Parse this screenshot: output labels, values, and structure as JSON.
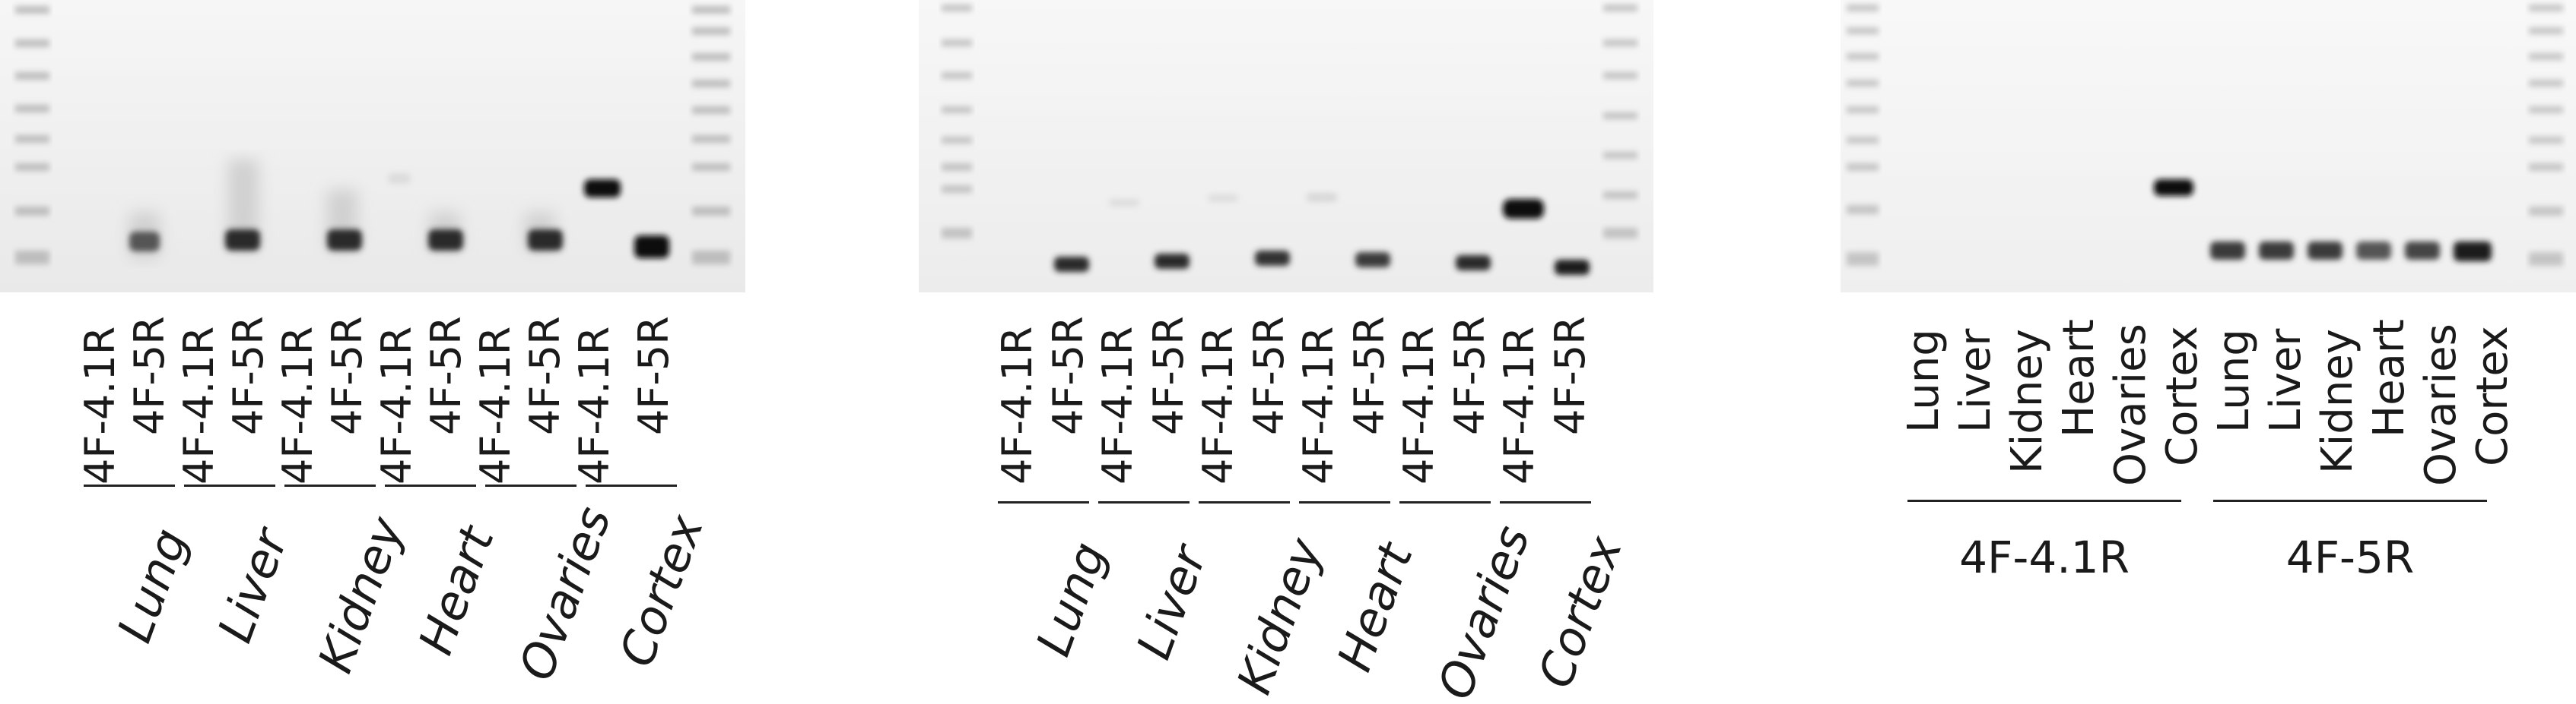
{
  "panel_a": {
    "lanes": [
      "4F-4.1R",
      "4F-5R",
      "4F-4.1R",
      "4F-5R",
      "4F-4.1R",
      "4F-5R",
      "4F-4.1R",
      "4F-5R",
      "4F-4.1R",
      "4F-5R",
      "4F-4.1R",
      "4F-5R"
    ],
    "tissues": [
      "Lung",
      "Liver",
      "Kidney",
      "Heart",
      "Ovaries",
      "Cortex"
    ]
  },
  "panel_b": {
    "lanes": [
      "4F-4.1R",
      "4F-5R",
      "4F-4.1R",
      "4F-5R",
      "4F-4.1R",
      "4F-5R",
      "4F-4.1R",
      "4F-5R",
      "4F-4.1R",
      "4F-5R",
      "4F-4.1R",
      "4F-5R"
    ],
    "tissues": [
      "Lung",
      "Liver",
      "Kidney",
      "Heart",
      "Ovaries",
      "Cortex"
    ]
  },
  "panel_c": {
    "lanes": [
      "Lung",
      "Liver",
      "Kidney",
      "Heart",
      "Ovaries",
      "Cortex",
      "Lung",
      "Liver",
      "Kidney",
      "Heart",
      "Ovaries",
      "Cortex"
    ],
    "groups": [
      "4F-4.1R",
      "4F-5R"
    ]
  },
  "colors": {
    "gel_background": "#f2f2f2",
    "band": "#111111",
    "ladder": "#b5b5b5"
  }
}
